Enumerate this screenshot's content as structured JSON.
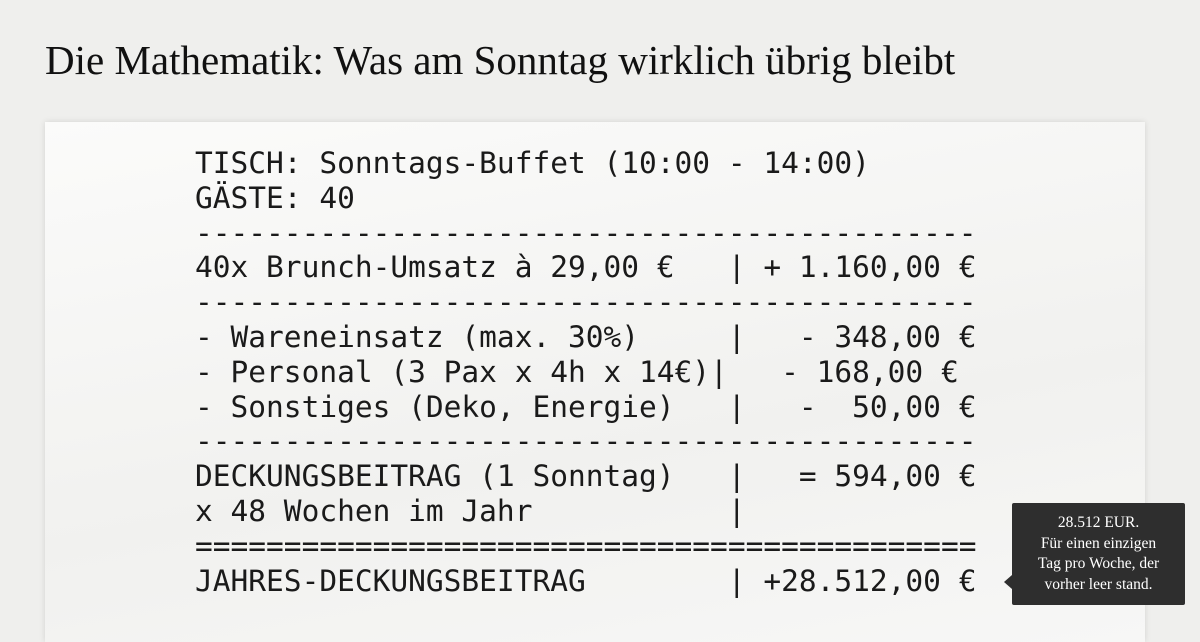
{
  "header": {
    "title": "Die Mathematik: Was am Sonntag wirklich übrig bleibt"
  },
  "receipt": {
    "lines": [
      "TISCH: Sonntags-Buffet (10:00 - 14:00)",
      "GÄSTE: 40",
      "--------------------------------------------",
      "40x Brunch-Umsatz à 29,00 €   | + 1.160,00 €",
      "--------------------------------------------",
      "- Wareneinsatz (max. 30%)     |   - 348,00 €",
      "- Personal (3 Pax x 4h x 14€)|   - 168,00 €",
      "- Sonstiges (Deko, Energie)   |   -  50,00 €",
      "--------------------------------------------",
      "DECKUNGSBEITRAG (1 Sonntag)   |   = 594,00 €",
      "x 48 Wochen im Jahr           |",
      "============================================",
      "JAHRES-DECKUNGSBEITRAG        | +28.512,00 €"
    ]
  },
  "tooltip": {
    "lines": [
      "28.512 EUR.",
      "Für einen einzigen",
      "Tag pro Woche, der",
      "vorher leer stand."
    ]
  }
}
